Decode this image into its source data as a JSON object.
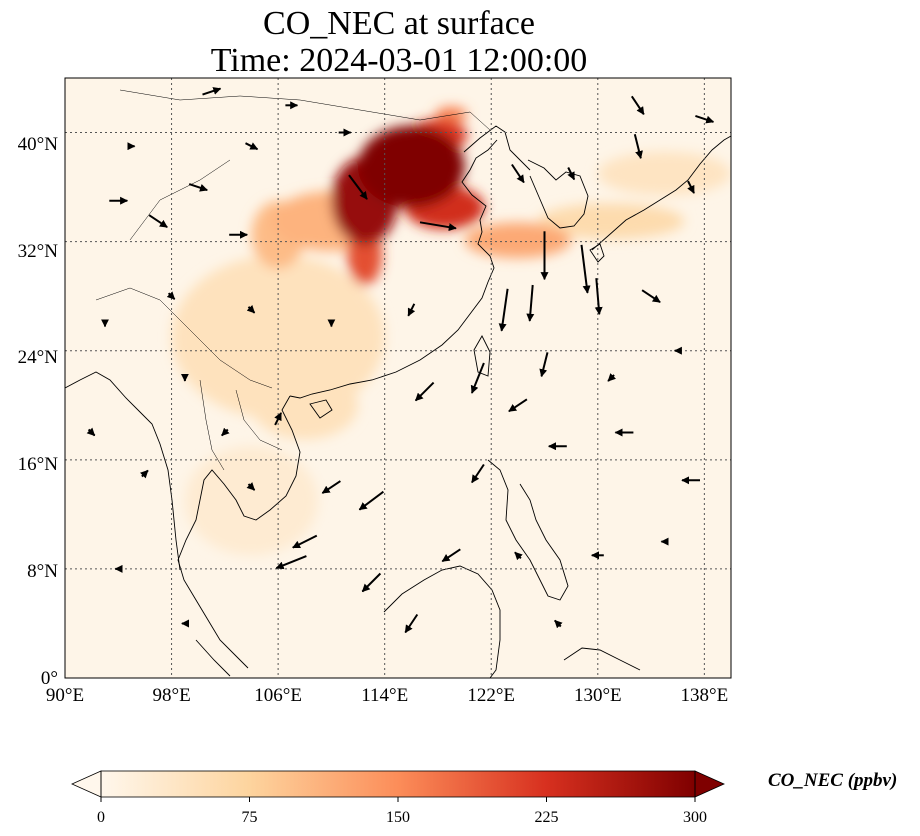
{
  "title": {
    "line1": "CO_NEC at surface",
    "line2": "Time: 2024-03-01 12:00:00"
  },
  "map": {
    "x_ticks": [
      "90°E",
      "98°E",
      "106°E",
      "114°E",
      "122°E",
      "130°E",
      "138°E"
    ],
    "y_ticks": [
      "0°",
      "8°N",
      "16°N",
      "24°N",
      "32°N",
      "40°N"
    ],
    "gridlines": true,
    "coastlines": true
  },
  "colorbar": {
    "label": "CO_NEC (ppbv)",
    "ticks": [
      "0",
      "75",
      "150",
      "225",
      "300"
    ],
    "colormap": "OrRd",
    "colors": [
      "#fff7ec",
      "#fdd49e",
      "#fc8d59",
      "#d7301f",
      "#7f0000"
    ],
    "extend": "both"
  },
  "chart_data": {
    "type": "heatmap",
    "title": "CO_NEC at surface\nTime: 2024-03-01 12:00:00",
    "variable": "CO_NEC",
    "units": "ppbv",
    "xlim": [
      90,
      140
    ],
    "ylim": [
      0,
      44
    ],
    "x_ticks": [
      90,
      98,
      106,
      114,
      122,
      130,
      138
    ],
    "y_ticks": [
      0,
      8,
      16,
      24,
      32,
      40
    ],
    "color_range": [
      0,
      300
    ],
    "hotspots": [
      {
        "lon": 116,
        "lat": 37.5,
        "rx": 4,
        "ry": 3,
        "value": 300
      },
      {
        "lon": 112.5,
        "lat": 35,
        "rx": 2.5,
        "ry": 3.2,
        "value": 280
      },
      {
        "lon": 118.5,
        "lat": 34.5,
        "rx": 3,
        "ry": 1.6,
        "value": 230
      },
      {
        "lon": 112.5,
        "lat": 31,
        "rx": 1.3,
        "ry": 2.2,
        "value": 200
      },
      {
        "lon": 118,
        "lat": 39.8,
        "rx": 2.2,
        "ry": 1.2,
        "value": 220
      },
      {
        "lon": 119,
        "lat": 41.3,
        "rx": 1.2,
        "ry": 0.6,
        "value": 160
      },
      {
        "lon": 124,
        "lat": 32.1,
        "rx": 4,
        "ry": 1.3,
        "value": 120
      },
      {
        "lon": 110,
        "lat": 33.5,
        "rx": 4.5,
        "ry": 2.2,
        "value": 110
      },
      {
        "lon": 106,
        "lat": 32.5,
        "rx": 2,
        "ry": 2.5,
        "value": 100
      },
      {
        "lon": 131,
        "lat": 33.5,
        "rx": 5.5,
        "ry": 1.3,
        "value": 60
      },
      {
        "lon": 135,
        "lat": 37,
        "rx": 5,
        "ry": 1.6,
        "value": 40
      },
      {
        "lon": 106,
        "lat": 25,
        "rx": 8,
        "ry": 6,
        "value": 45
      },
      {
        "lon": 108,
        "lat": 20,
        "rx": 4,
        "ry": 2.5,
        "value": 45
      },
      {
        "lon": 104,
        "lat": 13,
        "rx": 5,
        "ry": 4,
        "value": 25
      }
    ],
    "wind_vectors": [
      {
        "lon": 112,
        "lat": 36,
        "u": 3,
        "v": -4
      },
      {
        "lon": 118,
        "lat": 33.2,
        "u": 6,
        "v": -1
      },
      {
        "lon": 126,
        "lat": 31,
        "u": 0,
        "v": -8
      },
      {
        "lon": 129,
        "lat": 30,
        "u": 1,
        "v": -8
      },
      {
        "lon": 123,
        "lat": 27,
        "u": -1,
        "v": -7
      },
      {
        "lon": 125,
        "lat": 27.5,
        "u": -0.5,
        "v": -6
      },
      {
        "lon": 130,
        "lat": 28,
        "u": 0.5,
        "v": -6
      },
      {
        "lon": 121,
        "lat": 22,
        "u": -2,
        "v": -5
      },
      {
        "lon": 126,
        "lat": 23,
        "u": -1,
        "v": -4
      },
      {
        "lon": 117,
        "lat": 21,
        "u": -3,
        "v": -3
      },
      {
        "lon": 113,
        "lat": 13,
        "u": -4,
        "v": -3
      },
      {
        "lon": 107,
        "lat": 8.5,
        "u": -5,
        "v": -2
      },
      {
        "lon": 108,
        "lat": 10,
        "u": -4,
        "v": -2
      },
      {
        "lon": 110,
        "lat": 14,
        "u": -3,
        "v": -2
      },
      {
        "lon": 113,
        "lat": 7,
        "u": -3,
        "v": -3
      },
      {
        "lon": 116,
        "lat": 4,
        "u": -2,
        "v": -3
      },
      {
        "lon": 119,
        "lat": 9,
        "u": -3,
        "v": -2
      },
      {
        "lon": 121,
        "lat": 15,
        "u": -2,
        "v": -3
      },
      {
        "lon": 124,
        "lat": 20,
        "u": -3,
        "v": -2
      },
      {
        "lon": 127,
        "lat": 17,
        "u": -3,
        "v": 0
      },
      {
        "lon": 132,
        "lat": 18,
        "u": -3,
        "v": 0
      },
      {
        "lon": 137,
        "lat": 14.5,
        "u": -3,
        "v": 0
      },
      {
        "lon": 100,
        "lat": 36,
        "u": 3,
        "v": -1
      },
      {
        "lon": 94,
        "lat": 35,
        "u": 3,
        "v": 0
      },
      {
        "lon": 97,
        "lat": 33.5,
        "u": 3,
        "v": -2
      },
      {
        "lon": 103,
        "lat": 32.5,
        "u": 3,
        "v": 0
      },
      {
        "lon": 95,
        "lat": 39,
        "u": 1,
        "v": 0
      },
      {
        "lon": 107,
        "lat": 42,
        "u": 2,
        "v": 0
      },
      {
        "lon": 101,
        "lat": 43,
        "u": 3,
        "v": 1
      },
      {
        "lon": 133,
        "lat": 42,
        "u": 2,
        "v": -3
      },
      {
        "lon": 138,
        "lat": 41,
        "u": 3,
        "v": -1
      },
      {
        "lon": 133,
        "lat": 39,
        "u": 1,
        "v": -4
      },
      {
        "lon": 137,
        "lat": 36,
        "u": 1,
        "v": -2
      },
      {
        "lon": 134,
        "lat": 28,
        "u": 3,
        "v": -2
      },
      {
        "lon": 128,
        "lat": 37,
        "u": 1,
        "v": -2
      },
      {
        "lon": 124,
        "lat": 37,
        "u": 2,
        "v": -3
      },
      {
        "lon": 99,
        "lat": 22,
        "u": 0,
        "v": -1
      },
      {
        "lon": 102,
        "lat": 18,
        "u": -1,
        "v": -1
      },
      {
        "lon": 106,
        "lat": 19,
        "u": 1,
        "v": 2
      },
      {
        "lon": 104,
        "lat": 14,
        "u": 1,
        "v": -1
      },
      {
        "lon": 96,
        "lat": 15,
        "u": 1,
        "v": 1
      },
      {
        "lon": 93,
        "lat": 26,
        "u": 0,
        "v": -1
      },
      {
        "lon": 98,
        "lat": 28,
        "u": 1,
        "v": -1
      },
      {
        "lon": 104,
        "lat": 27,
        "u": 1,
        "v": -1
      },
      {
        "lon": 110,
        "lat": 26,
        "u": 0,
        "v": -1
      },
      {
        "lon": 116,
        "lat": 27,
        "u": -1,
        "v": -2
      },
      {
        "lon": 94,
        "lat": 8,
        "u": -1,
        "v": 0
      },
      {
        "lon": 99,
        "lat": 4,
        "u": -1,
        "v": 0
      },
      {
        "lon": 124,
        "lat": 9,
        "u": -1,
        "v": 1
      },
      {
        "lon": 130,
        "lat": 9,
        "u": -2,
        "v": 0
      },
      {
        "lon": 135,
        "lat": 10,
        "u": -1,
        "v": 0
      },
      {
        "lon": 127,
        "lat": 4,
        "u": -1,
        "v": 1
      },
      {
        "lon": 131,
        "lat": 22,
        "u": -1,
        "v": -1
      },
      {
        "lon": 136,
        "lat": 24,
        "u": -1,
        "v": 0
      },
      {
        "lon": 92,
        "lat": 18,
        "u": 1,
        "v": -1
      },
      {
        "lon": 111,
        "lat": 40,
        "u": 2,
        "v": 0
      },
      {
        "lon": 104,
        "lat": 39,
        "u": 2,
        "v": -1
      }
    ]
  }
}
